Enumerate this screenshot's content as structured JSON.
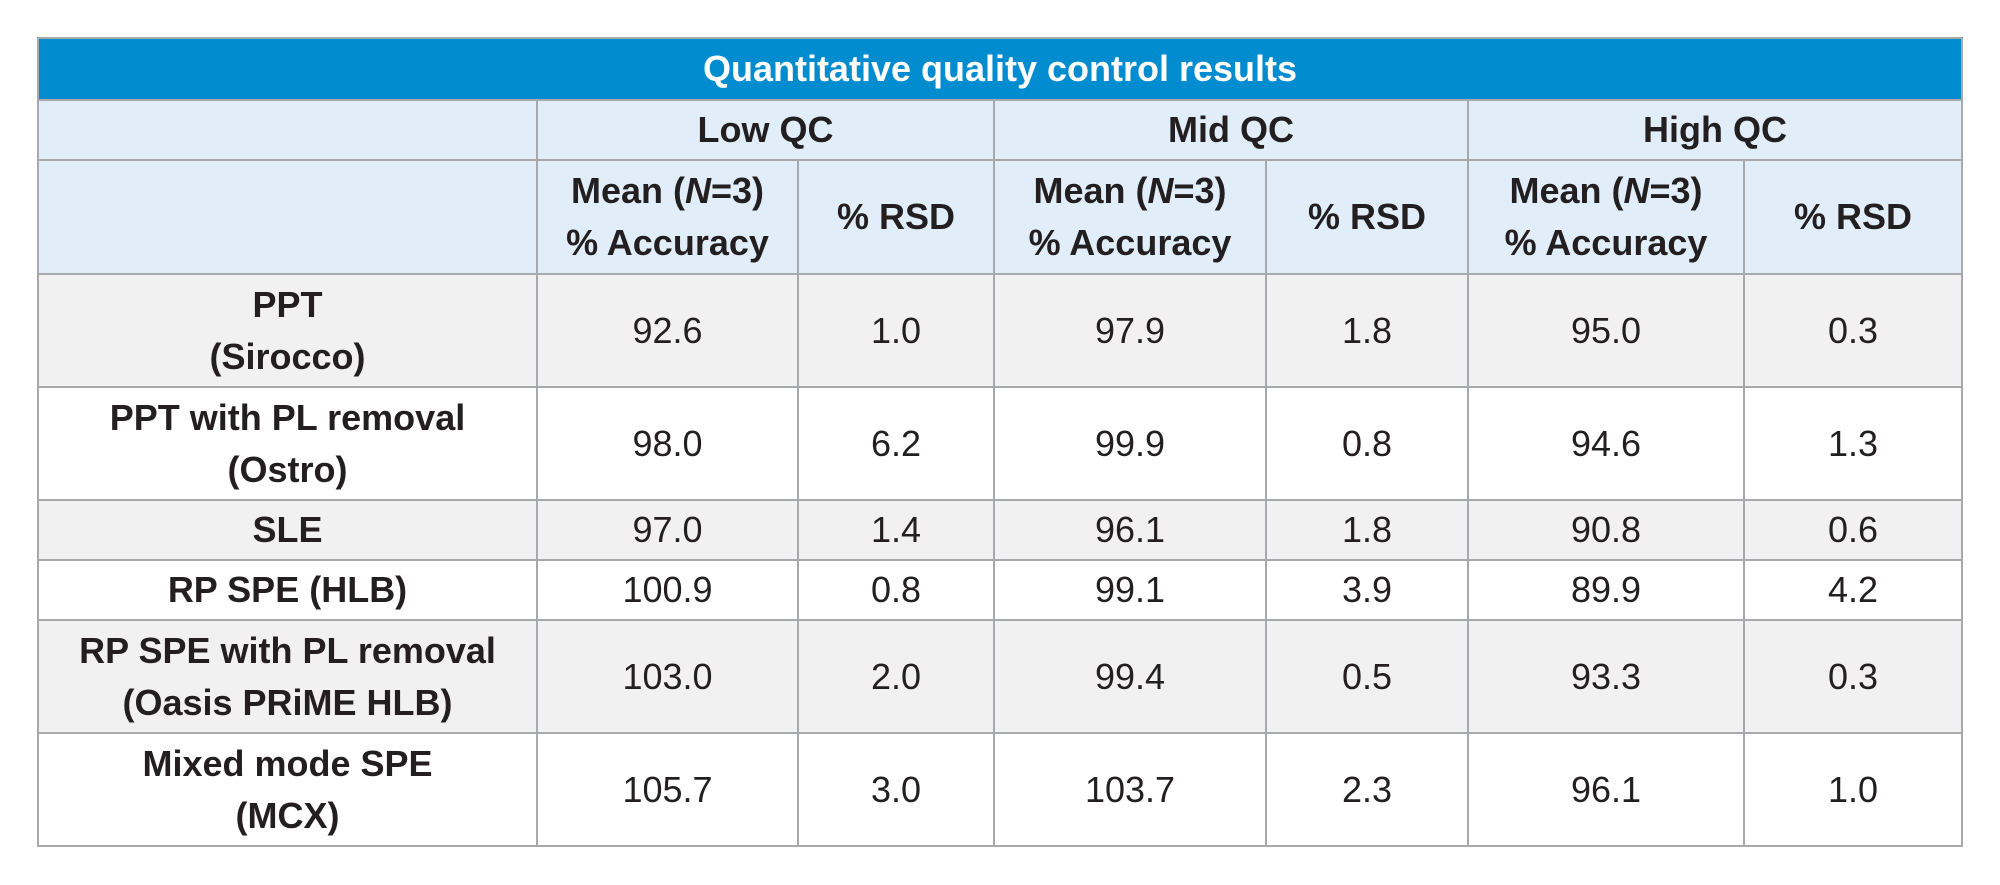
{
  "table": {
    "title": "Quantitative quality control results",
    "groups": [
      "Low QC",
      "Mid QC",
      "High QC"
    ],
    "sub_headers": {
      "mean_prefix": "Mean (",
      "mean_n": "N",
      "mean_suffix": "=3)",
      "accuracy": "% Accuracy",
      "rsd": "% RSD"
    },
    "rows": [
      {
        "label1": "PPT",
        "label2": "(Sirocco)",
        "values": [
          "92.6",
          "1.0",
          "97.9",
          "1.8",
          "95.0",
          "0.3"
        ]
      },
      {
        "label1": "PPT with PL removal",
        "label2": "(Ostro)",
        "values": [
          "98.0",
          "6.2",
          "99.9",
          "0.8",
          "94.6",
          "1.3"
        ]
      },
      {
        "label1": "SLE",
        "label2": "",
        "values": [
          "97.0",
          "1.4",
          "96.1",
          "1.8",
          "90.8",
          "0.6"
        ]
      },
      {
        "label1": "RP SPE (HLB)",
        "label2": "",
        "values": [
          "100.9",
          "0.8",
          "99.1",
          "3.9",
          "89.9",
          "4.2"
        ]
      },
      {
        "label1": "RP SPE with PL removal",
        "label2": "(Oasis PRiME HLB)",
        "values": [
          "103.0",
          "2.0",
          "99.4",
          "0.5",
          "93.3",
          "0.3"
        ]
      },
      {
        "label1": "Mixed mode SPE",
        "label2": "(MCX)",
        "values": [
          "105.7",
          "3.0",
          "103.7",
          "2.3",
          "96.1",
          "1.0"
        ]
      }
    ]
  },
  "colors": {
    "title_bg": "#008ccf",
    "header_bg": "#e1eef9",
    "shaded_row_bg": "#f1f1f2",
    "border": "#a7a9ac"
  }
}
